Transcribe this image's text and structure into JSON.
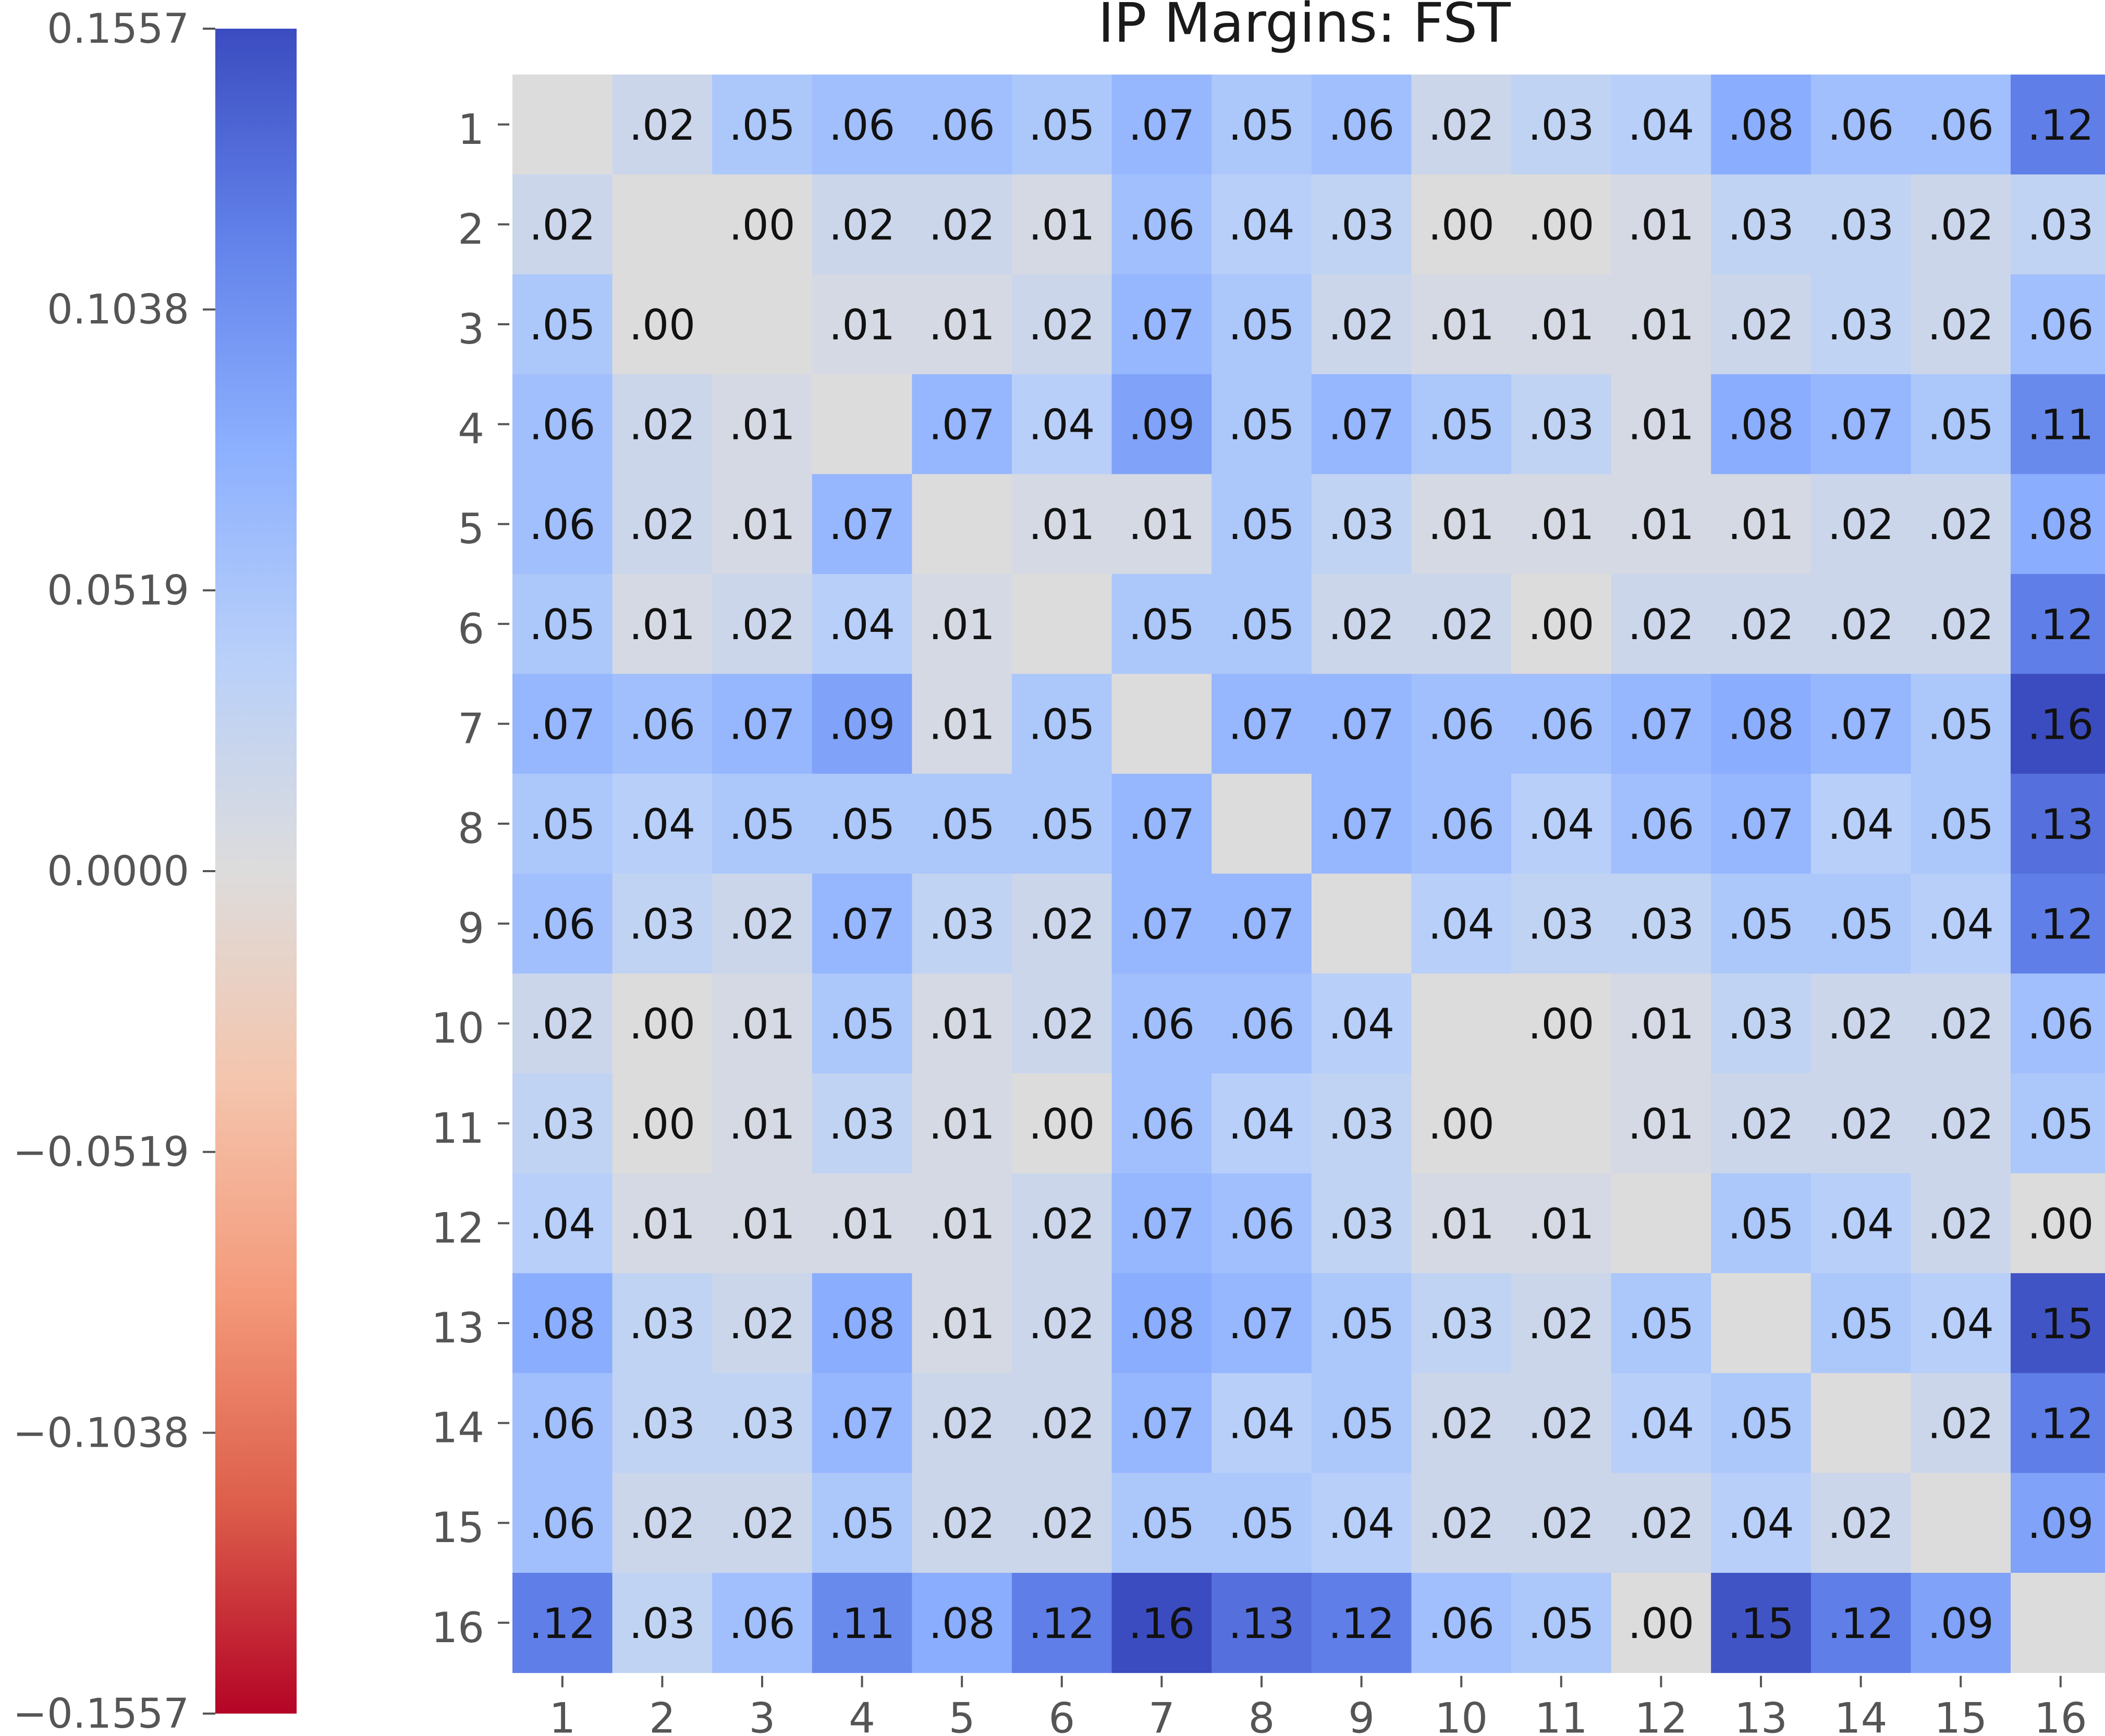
{
  "chart_data": {
    "type": "heatmap",
    "title": "IP Margins: FST",
    "x_labels": [
      "1",
      "2",
      "3",
      "4",
      "5",
      "6",
      "7",
      "8",
      "9",
      "10",
      "11",
      "12",
      "13",
      "14",
      "15",
      "16"
    ],
    "y_labels": [
      "1",
      "2",
      "3",
      "4",
      "5",
      "6",
      "7",
      "8",
      "9",
      "10",
      "11",
      "12",
      "13",
      "14",
      "15",
      "16"
    ],
    "cell_labels": [
      [
        "",
        ".02",
        ".05",
        ".06",
        ".06",
        ".05",
        ".07",
        ".05",
        ".06",
        ".02",
        ".03",
        ".04",
        ".08",
        ".06",
        ".06",
        ".12"
      ],
      [
        ".02",
        "",
        ".00",
        ".02",
        ".02",
        ".01",
        ".06",
        ".04",
        ".03",
        ".00",
        ".00",
        ".01",
        ".03",
        ".03",
        ".02",
        ".03"
      ],
      [
        ".05",
        ".00",
        "",
        ".01",
        ".01",
        ".02",
        ".07",
        ".05",
        ".02",
        ".01",
        ".01",
        ".01",
        ".02",
        ".03",
        ".02",
        ".06"
      ],
      [
        ".06",
        ".02",
        ".01",
        "",
        ".07",
        ".04",
        ".09",
        ".05",
        ".07",
        ".05",
        ".03",
        ".01",
        ".08",
        ".07",
        ".05",
        ".11"
      ],
      [
        ".06",
        ".02",
        ".01",
        ".07",
        "",
        ".01",
        ".01",
        ".05",
        ".03",
        ".01",
        ".01",
        ".01",
        ".01",
        ".02",
        ".02",
        ".08"
      ],
      [
        ".05",
        ".01",
        ".02",
        ".04",
        ".01",
        "",
        ".05",
        ".05",
        ".02",
        ".02",
        ".00",
        ".02",
        ".02",
        ".02",
        ".02",
        ".12"
      ],
      [
        ".07",
        ".06",
        ".07",
        ".09",
        ".01",
        ".05",
        "",
        ".07",
        ".07",
        ".06",
        ".06",
        ".07",
        ".08",
        ".07",
        ".05",
        ".16"
      ],
      [
        ".05",
        ".04",
        ".05",
        ".05",
        ".05",
        ".05",
        ".07",
        "",
        ".07",
        ".06",
        ".04",
        ".06",
        ".07",
        ".04",
        ".05",
        ".13"
      ],
      [
        ".06",
        ".03",
        ".02",
        ".07",
        ".03",
        ".02",
        ".07",
        ".07",
        "",
        ".04",
        ".03",
        ".03",
        ".05",
        ".05",
        ".04",
        ".12"
      ],
      [
        ".02",
        ".00",
        ".01",
        ".05",
        ".01",
        ".02",
        ".06",
        ".06",
        ".04",
        "",
        ".00",
        ".01",
        ".03",
        ".02",
        ".02",
        ".06"
      ],
      [
        ".03",
        ".00",
        ".01",
        ".03",
        ".01",
        ".00",
        ".06",
        ".04",
        ".03",
        ".00",
        "",
        ".01",
        ".02",
        ".02",
        ".02",
        ".05"
      ],
      [
        ".04",
        ".01",
        ".01",
        ".01",
        ".01",
        ".02",
        ".07",
        ".06",
        ".03",
        ".01",
        ".01",
        "",
        ".05",
        ".04",
        ".02",
        ".00"
      ],
      [
        ".08",
        ".03",
        ".02",
        ".08",
        ".01",
        ".02",
        ".08",
        ".07",
        ".05",
        ".03",
        ".02",
        ".05",
        "",
        ".05",
        ".04",
        ".15"
      ],
      [
        ".06",
        ".03",
        ".03",
        ".07",
        ".02",
        ".02",
        ".07",
        ".04",
        ".05",
        ".02",
        ".02",
        ".04",
        ".05",
        "",
        ".02",
        ".12"
      ],
      [
        ".06",
        ".02",
        ".02",
        ".05",
        ".02",
        ".02",
        ".05",
        ".05",
        ".04",
        ".02",
        ".02",
        ".02",
        ".04",
        ".02",
        "",
        ".09"
      ],
      [
        ".12",
        ".03",
        ".06",
        ".11",
        ".08",
        ".12",
        ".16",
        ".13",
        ".12",
        ".06",
        ".05",
        ".00",
        ".15",
        ".12",
        ".09",
        ""
      ]
    ],
    "values": [
      [
        null,
        0.02,
        0.05,
        0.06,
        0.06,
        0.05,
        0.07,
        0.05,
        0.06,
        0.02,
        0.03,
        0.04,
        0.08,
        0.06,
        0.06,
        0.12
      ],
      [
        0.02,
        null,
        0.0,
        0.02,
        0.02,
        0.01,
        0.06,
        0.04,
        0.03,
        0.0,
        0.0,
        0.01,
        0.03,
        0.03,
        0.02,
        0.03
      ],
      [
        0.05,
        0.0,
        null,
        0.01,
        0.01,
        0.02,
        0.07,
        0.05,
        0.02,
        0.01,
        0.01,
        0.01,
        0.02,
        0.03,
        0.02,
        0.06
      ],
      [
        0.06,
        0.02,
        0.01,
        null,
        0.07,
        0.04,
        0.09,
        0.05,
        0.07,
        0.05,
        0.03,
        0.01,
        0.08,
        0.07,
        0.05,
        0.11
      ],
      [
        0.06,
        0.02,
        0.01,
        0.07,
        null,
        0.01,
        0.01,
        0.05,
        0.03,
        0.01,
        0.01,
        0.01,
        0.01,
        0.02,
        0.02,
        0.08
      ],
      [
        0.05,
        0.01,
        0.02,
        0.04,
        0.01,
        null,
        0.05,
        0.05,
        0.02,
        0.02,
        0.0,
        0.02,
        0.02,
        0.02,
        0.02,
        0.12
      ],
      [
        0.07,
        0.06,
        0.07,
        0.09,
        0.01,
        0.05,
        null,
        0.07,
        0.07,
        0.06,
        0.06,
        0.07,
        0.08,
        0.07,
        0.05,
        0.16
      ],
      [
        0.05,
        0.04,
        0.05,
        0.05,
        0.05,
        0.05,
        0.07,
        null,
        0.07,
        0.06,
        0.04,
        0.06,
        0.07,
        0.04,
        0.05,
        0.13
      ],
      [
        0.06,
        0.03,
        0.02,
        0.07,
        0.03,
        0.02,
        0.07,
        0.07,
        null,
        0.04,
        0.03,
        0.03,
        0.05,
        0.05,
        0.04,
        0.12
      ],
      [
        0.02,
        0.0,
        0.01,
        0.05,
        0.01,
        0.02,
        0.06,
        0.06,
        0.04,
        null,
        0.0,
        0.01,
        0.03,
        0.02,
        0.02,
        0.06
      ],
      [
        0.03,
        0.0,
        0.01,
        0.03,
        0.01,
        0.0,
        0.06,
        0.04,
        0.03,
        0.0,
        null,
        0.01,
        0.02,
        0.02,
        0.02,
        0.05
      ],
      [
        0.04,
        0.01,
        0.01,
        0.01,
        0.01,
        0.02,
        0.07,
        0.06,
        0.03,
        0.01,
        0.01,
        null,
        0.05,
        0.04,
        0.02,
        0.0
      ],
      [
        0.08,
        0.03,
        0.02,
        0.08,
        0.01,
        0.02,
        0.08,
        0.07,
        0.05,
        0.03,
        0.02,
        0.05,
        null,
        0.05,
        0.04,
        0.15
      ],
      [
        0.06,
        0.03,
        0.03,
        0.07,
        0.02,
        0.02,
        0.07,
        0.04,
        0.05,
        0.02,
        0.02,
        0.04,
        0.05,
        null,
        0.02,
        0.12
      ],
      [
        0.06,
        0.02,
        0.02,
        0.05,
        0.02,
        0.02,
        0.05,
        0.05,
        0.04,
        0.02,
        0.02,
        0.02,
        0.04,
        0.02,
        null,
        0.09
      ],
      [
        0.12,
        0.03,
        0.06,
        0.11,
        0.08,
        0.12,
        0.16,
        0.13,
        0.12,
        0.06,
        0.05,
        0.0,
        0.15,
        0.12,
        0.09,
        null
      ]
    ],
    "colorbar": {
      "min": -0.1557,
      "max": 0.1557,
      "ticks": [
        "0.1557",
        "0.1038",
        "0.0519",
        "0.0000",
        "−0.0519",
        "−0.1038",
        "−0.1557"
      ],
      "tick_values": [
        0.1557,
        0.1038,
        0.0519,
        0.0,
        -0.0519,
        -0.1038,
        -0.1557
      ],
      "colormap": "coolwarm (red = negative, blue = positive)",
      "colors": {
        "negative_end": "#b40426",
        "center": "#dddcdc",
        "positive_end": "#3b4cc0"
      }
    },
    "diagonal_color": "#dcdcdc",
    "grid": false,
    "legend": "colorbar on the left"
  }
}
